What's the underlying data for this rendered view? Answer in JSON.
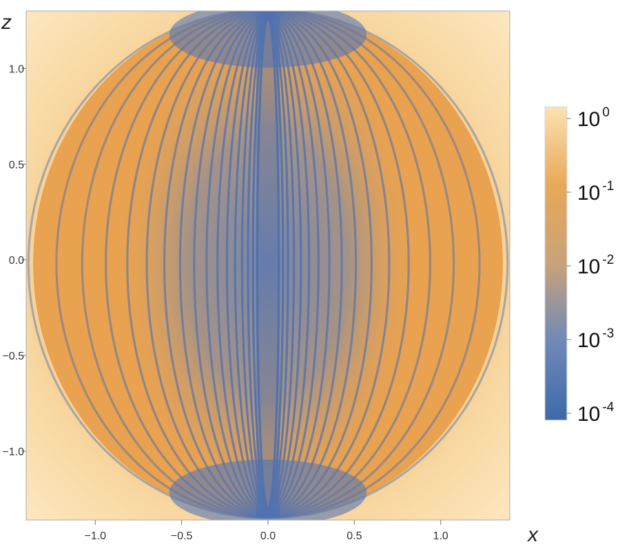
{
  "chart_data": {
    "type": "heatmap",
    "title": "",
    "xlabel": "x",
    "ylabel": "z",
    "xlim": [
      -1.4,
      1.4
    ],
    "ylim": [
      -1.36,
      1.3
    ],
    "x_ticks": [
      -1.0,
      -0.5,
      0.0,
      0.5,
      1.0
    ],
    "y_ticks": [
      -1.0,
      -0.5,
      0.0,
      0.5,
      1.0
    ],
    "x_tick_labels": [
      "−1.0",
      "−0.5",
      "0.0",
      "0.5",
      "1.0"
    ],
    "y_tick_labels": [
      "−1.0",
      "−0.5",
      "0.0",
      "0.5",
      "1.0"
    ],
    "color_scale": "log",
    "colorbar": {
      "range": [
        0.0001,
        1
      ],
      "ticks": [
        {
          "value": 1,
          "base": "10",
          "exponent": "0"
        },
        {
          "value": 0.1,
          "base": "10",
          "exponent": "-1"
        },
        {
          "value": 0.01,
          "base": "10",
          "exponent": "-2"
        },
        {
          "value": 0.001,
          "base": "10",
          "exponent": "-3"
        },
        {
          "value": 0.0001,
          "base": "10",
          "exponent": "-4"
        }
      ],
      "colors": [
        "#3d6aa8",
        "#6f89b8",
        "#c9a27a",
        "#e8a858",
        "#fbe3b4"
      ]
    },
    "region": {
      "shape": "ellipse",
      "center": [
        0.0,
        -0.02
      ],
      "semi_axis_x": 1.36,
      "semi_axis_z": 1.33,
      "ring_count": 17,
      "background_value": 1,
      "ring_value": 0.001,
      "core_value": 0.0001
    },
    "grid": false
  }
}
